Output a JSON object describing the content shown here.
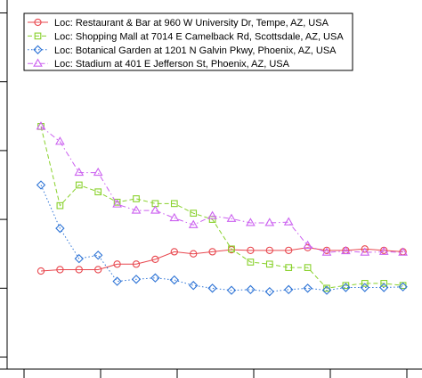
{
  "chart_data": {
    "type": "line",
    "x": [
      1,
      2,
      3,
      4,
      5,
      6,
      7,
      8,
      9,
      10,
      11,
      12,
      13,
      14,
      15,
      16,
      17,
      18,
      19,
      20
    ],
    "xlim": [
      0.5,
      20.5
    ],
    "ylim": [
      -0.1,
      5.1
    ],
    "x_ticks": [
      0,
      4,
      8,
      12,
      16,
      20
    ],
    "y_ticks": [
      0,
      1,
      2,
      3,
      4,
      5
    ],
    "legend_position": "top-left",
    "colors": {
      "restaurant": "#e8474e",
      "mall": "#88d12b",
      "garden": "#2e74d6",
      "stadium": "#cc62f0"
    },
    "series": [
      {
        "name": "Loc: Restaurant & Bar at 960 W University Dr, Tempe, AZ, USA",
        "key": "restaurant",
        "marker": "circle",
        "line": "solid",
        "values": [
          1.25,
          1.27,
          1.27,
          1.27,
          1.35,
          1.35,
          1.42,
          1.53,
          1.5,
          1.53,
          1.56,
          1.55,
          1.55,
          1.55,
          1.59,
          1.55,
          1.55,
          1.57,
          1.55,
          1.53
        ]
      },
      {
        "name": "Loc: Shopping Mall at 7014 E Camelback Rd, Scottsdale, AZ, USA",
        "key": "mall",
        "marker": "square",
        "line": "dashed",
        "values": [
          3.35,
          2.2,
          2.5,
          2.4,
          2.25,
          2.3,
          2.23,
          2.23,
          2.09,
          2.0,
          1.57,
          1.38,
          1.35,
          1.3,
          1.3,
          1.0,
          1.04,
          1.07,
          1.07,
          1.04
        ]
      },
      {
        "name": "Loc: Botanical Garden at 1201 N Galvin Pkwy, Phoenix, AZ, USA",
        "key": "garden",
        "marker": "diamond",
        "line": "dotted",
        "values": [
          2.5,
          1.87,
          1.43,
          1.48,
          1.1,
          1.13,
          1.15,
          1.12,
          1.04,
          1.0,
          0.97,
          0.98,
          0.95,
          0.98,
          1.0,
          0.97,
          1.01,
          1.01,
          1.01,
          1.02
        ]
      },
      {
        "name": "Loc: Stadium at 401 E Jefferson St, Phoenix, AZ, USA",
        "key": "stadium",
        "marker": "triangle",
        "line": "dotdash",
        "values": [
          3.35,
          3.13,
          2.68,
          2.68,
          2.22,
          2.13,
          2.13,
          2.02,
          1.92,
          2.05,
          2.01,
          1.95,
          1.95,
          1.96,
          1.62,
          1.52,
          1.54,
          1.52,
          1.53,
          1.52
        ]
      }
    ]
  }
}
